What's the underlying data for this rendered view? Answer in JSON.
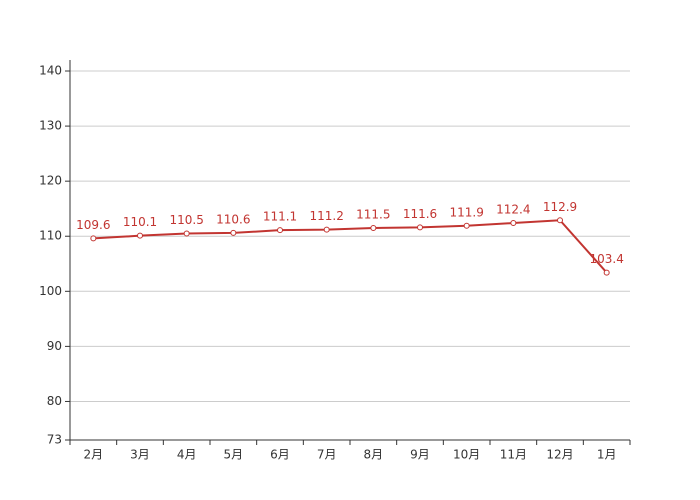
{
  "chart_data": {
    "type": "line",
    "categories": [
      "2月",
      "3月",
      "4月",
      "5月",
      "6月",
      "7月",
      "8月",
      "9月",
      "10月",
      "11月",
      "12月",
      "1月"
    ],
    "values": [
      109.6,
      110.1,
      110.5,
      110.6,
      111.1,
      111.2,
      111.5,
      111.6,
      111.9,
      112.4,
      112.9,
      103.4
    ],
    "color": "#c23531",
    "ylim": [
      73,
      142
    ],
    "yticks": [
      73,
      80,
      90,
      100,
      110,
      120,
      130,
      140
    ],
    "grid": true
  }
}
